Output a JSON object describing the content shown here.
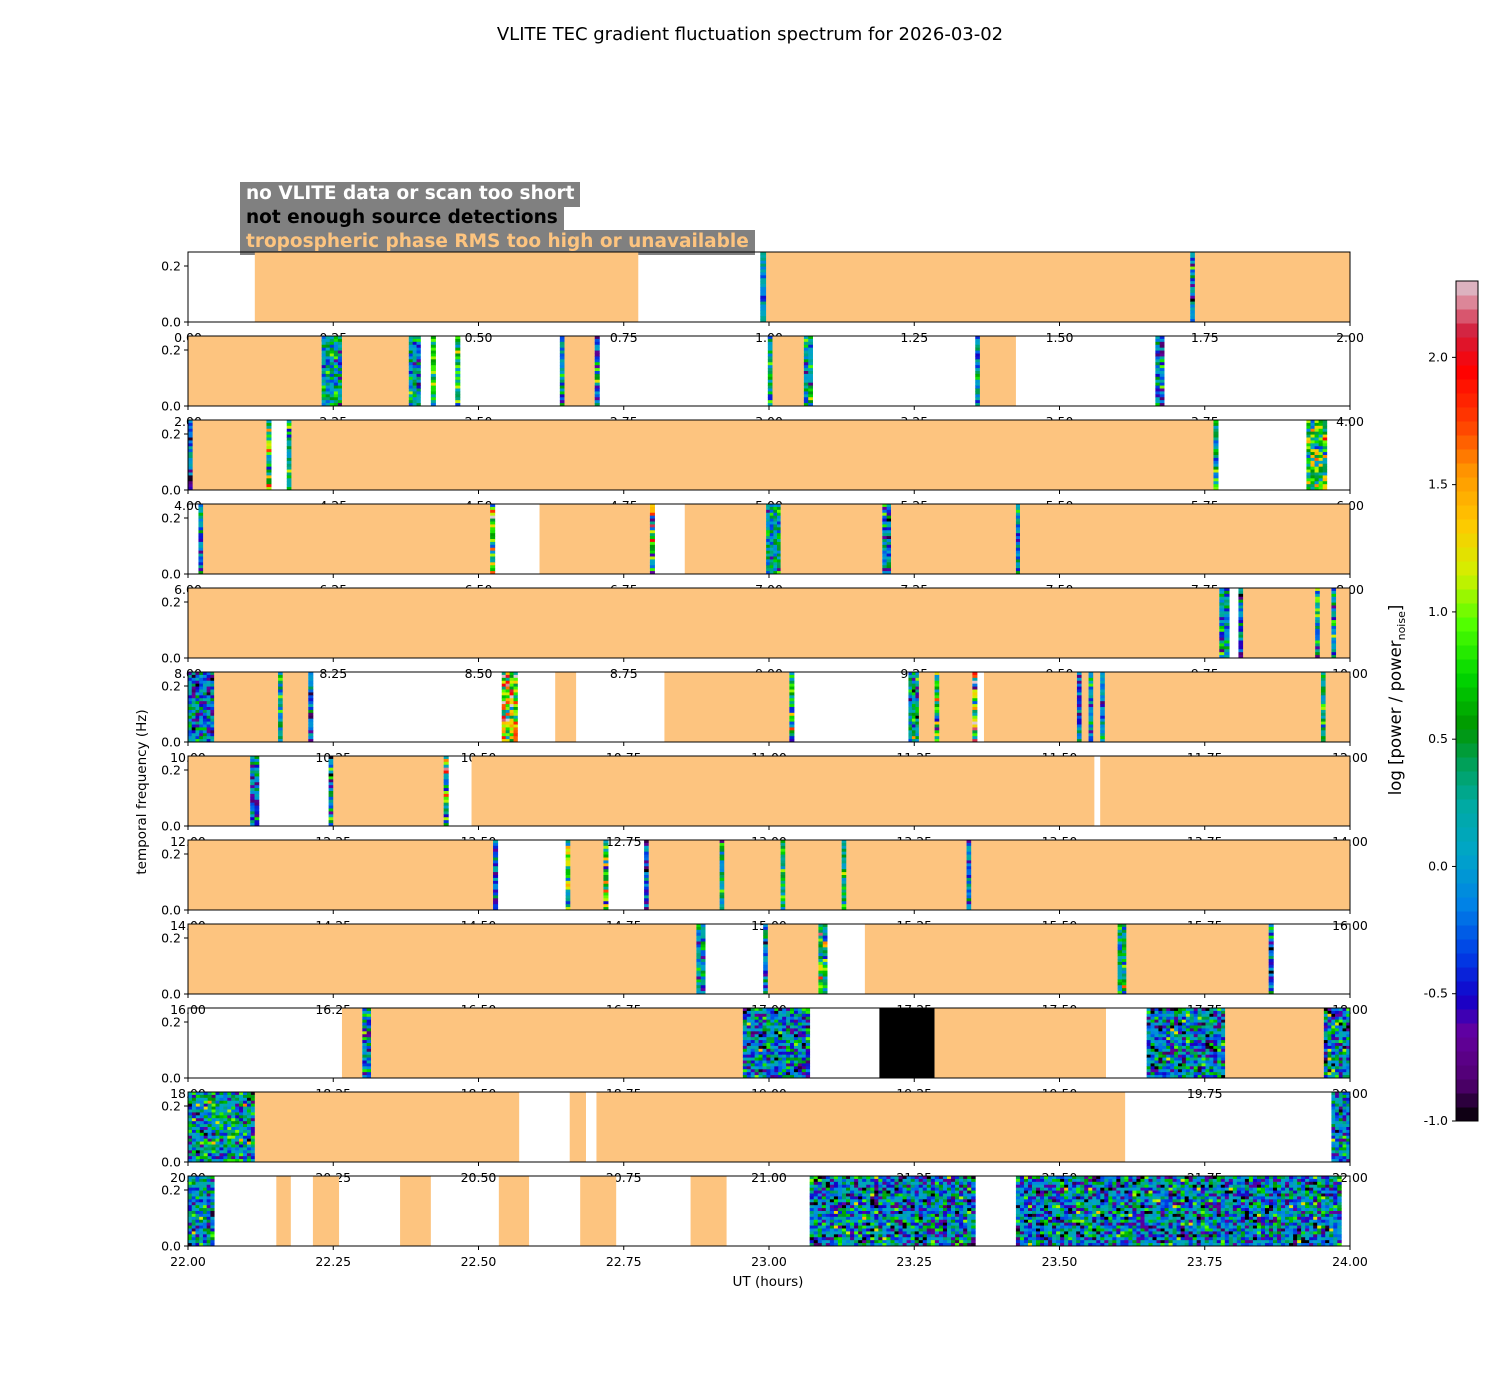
{
  "chart_data": {
    "type": "heatmap",
    "title": "VLITE TEC gradient fluctuation spectrum for 2026-03-02",
    "xlabel": "UT (hours)",
    "ylabel": "temporal frequency (Hz)",
    "ylim": [
      0,
      0.25
    ],
    "ytick_labels": [
      "0.0",
      "0.2"
    ],
    "colorbar": {
      "label_main": "log [power / power",
      "label_sub": "noise",
      "label_end": "]",
      "range": [
        -1.0,
        2.3
      ],
      "tick_labels": [
        "-1.0",
        "-0.5",
        "0.0",
        "0.5",
        "1.0",
        "1.5",
        "2.0"
      ],
      "tick_values": [
        -1.0,
        -0.5,
        0.0,
        0.5,
        1.0,
        1.5,
        2.0
      ]
    },
    "legend": [
      {
        "label": "no VLITE data or scan too short",
        "color": "#ffffff"
      },
      {
        "label": "not enough source detections",
        "color": "#000000"
      },
      {
        "label": "tropospheric phase RMS too high or unavailable",
        "color": "#fdc47f"
      }
    ],
    "colors": {
      "tropo": "#fdc47f",
      "nodetect": "#000000",
      "background": "#ffffff",
      "legend_bg": "#808080"
    },
    "panels": [
      {
        "range": [
          0,
          2
        ],
        "tick_labels": [
          "0.00",
          "0.25",
          "0.50",
          "0.75",
          "1.00",
          "1.25",
          "1.50",
          "1.75",
          "2.00"
        ],
        "segments": [
          {
            "t": "tropo",
            "s": 0.115,
            "e": 0.775
          },
          {
            "t": "spec",
            "s": 0.985,
            "e": 0.995,
            "lv": 0.0,
            "v": 0.3
          },
          {
            "t": "tropo",
            "s": 0.995,
            "e": 1.725
          },
          {
            "t": "spec",
            "s": 1.725,
            "e": 1.733,
            "lv": -0.1,
            "v": 0.5
          },
          {
            "t": "tropo",
            "s": 1.733,
            "e": 2.0
          }
        ]
      },
      {
        "range": [
          2,
          4
        ],
        "tick_labels": [
          "2.00",
          "2.25",
          "2.50",
          "2.75",
          "3.00",
          "3.25",
          "3.50",
          "3.75",
          "4.00"
        ],
        "segments": [
          {
            "t": "tropo",
            "s": 2.0,
            "e": 2.23
          },
          {
            "t": "spec",
            "s": 2.23,
            "e": 2.265,
            "lv": 0.15,
            "v": 0.4
          },
          {
            "t": "tropo",
            "s": 2.265,
            "e": 2.38
          },
          {
            "t": "spec",
            "s": 2.38,
            "e": 2.4,
            "lv": 0.15,
            "v": 0.4
          },
          {
            "t": "spec",
            "s": 2.418,
            "e": 2.426,
            "lv": 0.7,
            "v": 0.4
          },
          {
            "t": "spec",
            "s": 2.46,
            "e": 2.468,
            "lv": 0.5,
            "v": 0.4
          },
          {
            "t": "spec",
            "s": 2.64,
            "e": 2.648,
            "lv": 0.1,
            "v": 0.4
          },
          {
            "t": "tropo",
            "s": 2.648,
            "e": 2.7
          },
          {
            "t": "spec",
            "s": 2.7,
            "e": 2.708,
            "lv": 0.0,
            "v": 0.5
          },
          {
            "t": "spec",
            "s": 2.998,
            "e": 3.006,
            "lv": 0.2,
            "v": 0.4
          },
          {
            "t": "tropo",
            "s": 3.006,
            "e": 3.06
          },
          {
            "t": "spec",
            "s": 3.06,
            "e": 3.075,
            "lv": 0.2,
            "v": 0.4
          },
          {
            "t": "spec",
            "s": 3.355,
            "e": 3.363,
            "lv": 0.1,
            "v": 0.4
          },
          {
            "t": "tropo",
            "s": 3.363,
            "e": 3.425
          },
          {
            "t": "spec",
            "s": 3.665,
            "e": 3.68,
            "lv": -0.1,
            "v": 0.5
          }
        ]
      },
      {
        "range": [
          4,
          6
        ],
        "tick_labels": [
          "4.00",
          "4.25",
          "4.50",
          "4.75",
          "5.00",
          "5.25",
          "5.50",
          "5.75",
          "6.00"
        ],
        "segments": [
          {
            "t": "spec",
            "s": 4.0,
            "e": 4.008,
            "lv": -0.2,
            "v": 0.5
          },
          {
            "t": "tropo",
            "s": 4.008,
            "e": 4.135
          },
          {
            "t": "spec",
            "s": 4.135,
            "e": 4.143,
            "lv": 0.6,
            "v": 0.6
          },
          {
            "t": "spec",
            "s": 4.17,
            "e": 4.178,
            "lv": 0.3,
            "v": 0.4
          },
          {
            "t": "tropo",
            "s": 4.178,
            "e": 5.765
          },
          {
            "t": "spec",
            "s": 5.765,
            "e": 5.773,
            "lv": 0.3,
            "v": 0.4
          },
          {
            "t": "spec",
            "s": 5.925,
            "e": 5.96,
            "lv": 0.5,
            "v": 0.6
          }
        ]
      },
      {
        "range": [
          6,
          8
        ],
        "tick_labels": [
          "6.00",
          "6.25",
          "6.50",
          "6.75",
          "7.00",
          "7.25",
          "7.50",
          "7.75",
          "8.00"
        ],
        "segments": [
          {
            "t": "spec",
            "s": 6.018,
            "e": 6.026,
            "lv": 0.05,
            "v": 0.4
          },
          {
            "t": "tropo",
            "s": 6.026,
            "e": 6.52
          },
          {
            "t": "spec",
            "s": 6.52,
            "e": 6.528,
            "lv": 0.8,
            "v": 0.7
          },
          {
            "t": "tropo",
            "s": 6.605,
            "e": 6.795
          },
          {
            "t": "spec",
            "s": 6.795,
            "e": 6.803,
            "lv": 0.7,
            "v": 0.8
          },
          {
            "t": "tropo",
            "s": 6.855,
            "e": 6.995
          },
          {
            "t": "spec",
            "s": 6.995,
            "e": 7.02,
            "lv": 0.2,
            "v": 0.4
          },
          {
            "t": "tropo",
            "s": 7.02,
            "e": 7.195
          },
          {
            "t": "spec",
            "s": 7.195,
            "e": 7.21,
            "lv": -0.1,
            "v": 0.5
          },
          {
            "t": "tropo",
            "s": 7.21,
            "e": 7.425
          },
          {
            "t": "spec",
            "s": 7.425,
            "e": 7.432,
            "lv": 0.0,
            "v": 0.4
          },
          {
            "t": "tropo",
            "s": 7.432,
            "e": 8.0
          }
        ]
      },
      {
        "range": [
          8,
          10
        ],
        "tick_labels": [
          "8.00",
          "8.25",
          "8.50",
          "8.75",
          "9.00",
          "9.25",
          "9.50",
          "9.75",
          "10.00"
        ],
        "segments": [
          {
            "t": "tropo",
            "s": 8.0,
            "e": 9.775
          },
          {
            "t": "spec",
            "s": 9.775,
            "e": 9.792,
            "lv": 0.2,
            "v": 0.4
          },
          {
            "t": "spec",
            "s": 9.808,
            "e": 9.816,
            "lv": -0.2,
            "v": 0.4
          },
          {
            "t": "tropo",
            "s": 9.816,
            "e": 9.94
          },
          {
            "t": "spec",
            "s": 9.94,
            "e": 9.948,
            "lv": 0.3,
            "v": 0.6
          },
          {
            "t": "tropo",
            "s": 9.948,
            "e": 9.968
          },
          {
            "t": "spec",
            "s": 9.968,
            "e": 9.976,
            "lv": 0.05,
            "v": 0.5
          },
          {
            "t": "tropo",
            "s": 9.976,
            "e": 10.0
          }
        ]
      },
      {
        "range": [
          10,
          12
        ],
        "tick_labels": [
          "10.00",
          "10.25",
          "10.50",
          "10.75",
          "11.00",
          "11.25",
          "11.50",
          "11.75",
          "12.00"
        ],
        "segments": [
          {
            "t": "spec",
            "s": 10.0,
            "e": 10.045,
            "lv": -0.1,
            "v": 0.5
          },
          {
            "t": "tropo",
            "s": 10.045,
            "e": 10.155
          },
          {
            "t": "spec",
            "s": 10.155,
            "e": 10.163,
            "lv": 0.3,
            "v": 0.4
          },
          {
            "t": "tropo",
            "s": 10.163,
            "e": 10.207
          },
          {
            "t": "spec",
            "s": 10.207,
            "e": 10.215,
            "lv": -0.2,
            "v": 0.5
          },
          {
            "t": "spec",
            "s": 10.54,
            "e": 10.567,
            "lv": 1.2,
            "v": 0.7
          },
          {
            "t": "tropo",
            "s": 10.632,
            "e": 10.668
          },
          {
            "t": "tropo",
            "s": 10.82,
            "e": 11.035
          },
          {
            "t": "spec",
            "s": 11.035,
            "e": 11.043,
            "lv": 0.8,
            "v": 0.7
          },
          {
            "t": "spec",
            "s": 11.24,
            "e": 11.258,
            "lv": 0.1,
            "v": 0.5
          },
          {
            "t": "tropo",
            "s": 11.258,
            "e": 11.285
          },
          {
            "t": "spec",
            "s": 11.285,
            "e": 11.293,
            "lv": 0.6,
            "v": 0.6
          },
          {
            "t": "tropo",
            "s": 11.293,
            "e": 11.35
          },
          {
            "t": "spec",
            "s": 11.35,
            "e": 11.358,
            "lv": 1.2,
            "v": 0.8
          },
          {
            "t": "tropo",
            "s": 11.37,
            "e": 11.53
          },
          {
            "t": "spec",
            "s": 11.53,
            "e": 11.538,
            "lv": -0.2,
            "v": 0.5
          },
          {
            "t": "tropo",
            "s": 11.538,
            "e": 11.55
          },
          {
            "t": "spec",
            "s": 11.55,
            "e": 11.558,
            "lv": -0.1,
            "v": 0.5
          },
          {
            "t": "tropo",
            "s": 11.558,
            "e": 11.57
          },
          {
            "t": "spec",
            "s": 11.57,
            "e": 11.578,
            "lv": 0.05,
            "v": 0.4
          },
          {
            "t": "tropo",
            "s": 11.578,
            "e": 11.95
          },
          {
            "t": "spec",
            "s": 11.95,
            "e": 11.958,
            "lv": 0.3,
            "v": 0.4
          },
          {
            "t": "tropo",
            "s": 11.958,
            "e": 12.0
          }
        ]
      },
      {
        "range": [
          12,
          14
        ],
        "tick_labels": [
          "12.00",
          "12.25",
          "12.50",
          "12.75",
          "13.00",
          "13.25",
          "13.50",
          "13.75",
          "14.00"
        ],
        "segments": [
          {
            "t": "tropo",
            "s": 12.0,
            "e": 12.107
          },
          {
            "t": "spec",
            "s": 12.107,
            "e": 12.122,
            "lv": 0.0,
            "v": 0.4
          },
          {
            "t": "spec",
            "s": 12.242,
            "e": 12.25,
            "lv": 0.0,
            "v": 0.5
          },
          {
            "t": "tropo",
            "s": 12.25,
            "e": 12.44
          },
          {
            "t": "spec",
            "s": 12.44,
            "e": 12.448,
            "lv": 0.9,
            "v": 0.8
          },
          {
            "t": "tropo",
            "s": 12.488,
            "e": 13.56
          },
          {
            "t": "tropo",
            "s": 13.57,
            "e": 14.0
          }
        ]
      },
      {
        "range": [
          14,
          16
        ],
        "tick_labels": [
          "14.00",
          "14.25",
          "14.50",
          "14.75",
          "15.00",
          "15.25",
          "15.50",
          "15.75",
          "16.00"
        ],
        "segments": [
          {
            "t": "tropo",
            "s": 14.0,
            "e": 14.525
          },
          {
            "t": "spec",
            "s": 14.525,
            "e": 14.533,
            "lv": -0.1,
            "v": 0.4
          },
          {
            "t": "spec",
            "s": 14.65,
            "e": 14.658,
            "lv": 0.6,
            "v": 0.6
          },
          {
            "t": "tropo",
            "s": 14.658,
            "e": 14.715
          },
          {
            "t": "spec",
            "s": 14.715,
            "e": 14.723,
            "lv": 0.6,
            "v": 0.6
          },
          {
            "t": "spec",
            "s": 14.785,
            "e": 14.793,
            "lv": -0.2,
            "v": 0.4
          },
          {
            "t": "tropo",
            "s": 14.793,
            "e": 14.915
          },
          {
            "t": "spec",
            "s": 14.915,
            "e": 14.923,
            "lv": 0.2,
            "v": 0.4
          },
          {
            "t": "tropo",
            "s": 14.923,
            "e": 15.02
          },
          {
            "t": "spec",
            "s": 15.02,
            "e": 15.028,
            "lv": 0.4,
            "v": 0.5
          },
          {
            "t": "tropo",
            "s": 15.028,
            "e": 15.125
          },
          {
            "t": "spec",
            "s": 15.125,
            "e": 15.133,
            "lv": 0.2,
            "v": 0.4
          },
          {
            "t": "tropo",
            "s": 15.133,
            "e": 15.34
          },
          {
            "t": "spec",
            "s": 15.34,
            "e": 15.348,
            "lv": -0.1,
            "v": 0.4
          },
          {
            "t": "tropo",
            "s": 15.348,
            "e": 16.0
          }
        ]
      },
      {
        "range": [
          16,
          18
        ],
        "tick_labels": [
          "16.00",
          "16.25",
          "16.50",
          "16.75",
          "17.00",
          "17.25",
          "17.50",
          "17.75",
          "18.00"
        ],
        "segments": [
          {
            "t": "tropo",
            "s": 16.0,
            "e": 16.875
          },
          {
            "t": "spec",
            "s": 16.875,
            "e": 16.89,
            "lv": 0.0,
            "v": 0.4
          },
          {
            "t": "spec",
            "s": 16.99,
            "e": 16.998,
            "lv": 0.05,
            "v": 0.4
          },
          {
            "t": "tropo",
            "s": 16.998,
            "e": 17.085
          },
          {
            "t": "spec",
            "s": 17.085,
            "e": 17.1,
            "lv": 0.5,
            "v": 0.6
          },
          {
            "t": "tropo",
            "s": 17.165,
            "e": 17.6
          },
          {
            "t": "spec",
            "s": 17.6,
            "e": 17.615,
            "lv": 0.3,
            "v": 0.5
          },
          {
            "t": "tropo",
            "s": 17.615,
            "e": 17.86
          },
          {
            "t": "spec",
            "s": 17.86,
            "e": 17.868,
            "lv": -0.1,
            "v": 0.5
          }
        ]
      },
      {
        "range": [
          18,
          20
        ],
        "tick_labels": [
          "18.00",
          "18.25",
          "18.50",
          "18.75",
          "19.00",
          "19.25",
          "19.50",
          "19.75",
          "20.00"
        ],
        "segments": [
          {
            "t": "tropo",
            "s": 18.265,
            "e": 18.3
          },
          {
            "t": "spec",
            "s": 18.3,
            "e": 18.315,
            "lv": 0.1,
            "v": 0.5
          },
          {
            "t": "tropo",
            "s": 18.315,
            "e": 18.955
          },
          {
            "t": "spec",
            "s": 18.955,
            "e": 19.07,
            "lv": -0.05,
            "v": 0.55
          },
          {
            "t": "nodetect",
            "s": 19.19,
            "e": 19.285
          },
          {
            "t": "tropo",
            "s": 19.285,
            "e": 19.58
          },
          {
            "t": "spec",
            "s": 19.65,
            "e": 19.785,
            "lv": -0.05,
            "v": 0.55
          },
          {
            "t": "tropo",
            "s": 19.785,
            "e": 19.955
          },
          {
            "t": "spec",
            "s": 19.955,
            "e": 20.0,
            "lv": -0.05,
            "v": 0.55
          }
        ]
      },
      {
        "range": [
          20,
          22
        ],
        "tick_labels": [
          "20.00",
          "20.25",
          "20.50",
          "20.75",
          "21.00",
          "21.25",
          "21.50",
          "21.75",
          "22.00"
        ],
        "segments": [
          {
            "t": "spec",
            "s": 20.0,
            "e": 20.115,
            "lv": 0.15,
            "v": 0.5
          },
          {
            "t": "tropo",
            "s": 20.115,
            "e": 20.57
          },
          {
            "t": "tropo",
            "s": 20.657,
            "e": 20.685
          },
          {
            "t": "tropo",
            "s": 20.703,
            "e": 21.613
          },
          {
            "t": "spec",
            "s": 21.968,
            "e": 22.0,
            "lv": 0.0,
            "v": 0.5
          }
        ]
      },
      {
        "range": [
          22,
          24
        ],
        "tick_labels": [
          "22.00",
          "22.25",
          "22.50",
          "22.75",
          "23.00",
          "23.25",
          "23.50",
          "23.75",
          "24.00"
        ],
        "segments": [
          {
            "t": "spec",
            "s": 22.0,
            "e": 22.045,
            "lv": 0.05,
            "v": 0.5
          },
          {
            "t": "tropo",
            "s": 22.152,
            "e": 22.177
          },
          {
            "t": "tropo",
            "s": 22.215,
            "e": 22.26
          },
          {
            "t": "tropo",
            "s": 22.365,
            "e": 22.418
          },
          {
            "t": "tropo",
            "s": 22.535,
            "e": 22.587
          },
          {
            "t": "tropo",
            "s": 22.675,
            "e": 22.737
          },
          {
            "t": "tropo",
            "s": 22.865,
            "e": 22.927
          },
          {
            "t": "spec",
            "s": 23.07,
            "e": 23.355,
            "lv": -0.05,
            "v": 0.55
          },
          {
            "t": "spec",
            "s": 23.425,
            "e": 23.985,
            "lv": -0.05,
            "v": 0.55
          }
        ]
      }
    ]
  }
}
